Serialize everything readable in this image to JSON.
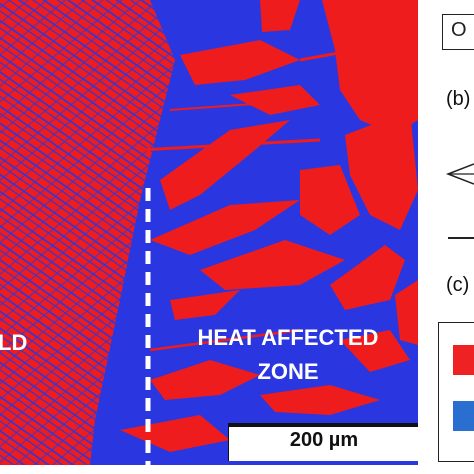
{
  "figure": {
    "weld_label": "LD",
    "haz_label_line1": "HEAT AFFECTED",
    "haz_label_line2": "ZONE",
    "scale_bar_label": "200 µm",
    "panel_b_label": "(b)",
    "panel_c_label": "(c)",
    "top_box_glyph": "O"
  },
  "colors": {
    "phase_red": "#ee1c1c",
    "phase_blue": "#2a37e0",
    "legend_red": "#ee2222",
    "legend_blue": "#2a6fd0"
  },
  "icons": {
    "arrow": "arrow-left-icon"
  }
}
